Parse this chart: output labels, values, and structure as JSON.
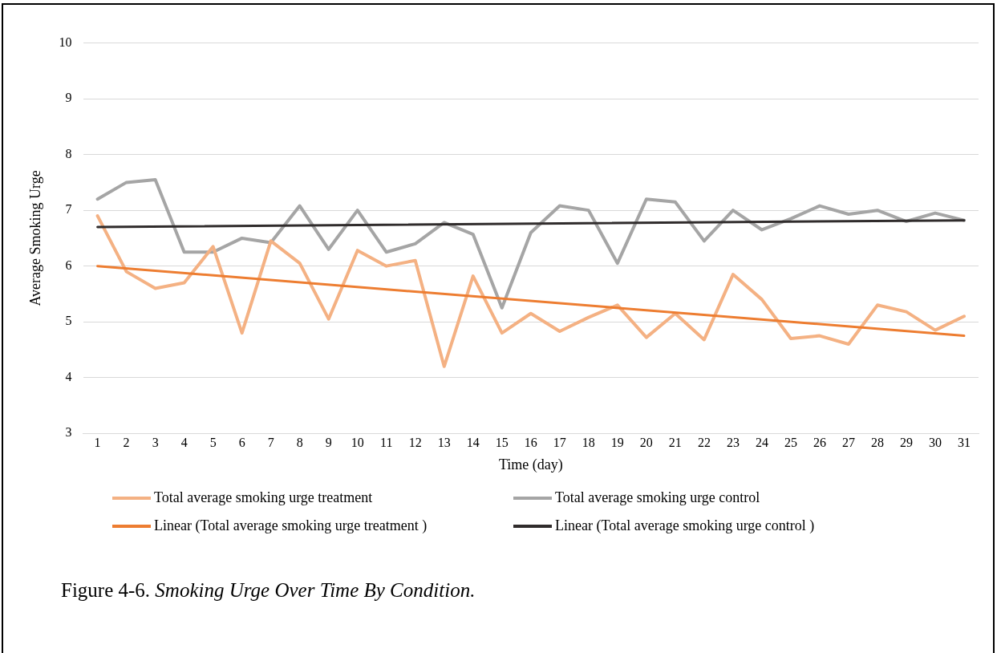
{
  "chart_data": {
    "type": "line",
    "xlabel": "Time (day)",
    "ylabel": "Average Smoking Urge",
    "xlim": [
      0.5,
      31.5
    ],
    "xticks": [
      1,
      2,
      3,
      4,
      5,
      6,
      7,
      8,
      9,
      10,
      11,
      12,
      13,
      14,
      15,
      16,
      17,
      18,
      19,
      20,
      21,
      22,
      23,
      24,
      25,
      26,
      27,
      28,
      29,
      30,
      31
    ],
    "ylim": [
      3,
      10
    ],
    "yticks": [
      3,
      4,
      5,
      6,
      7,
      8,
      9,
      10
    ],
    "grid": "y",
    "legend": "bottom",
    "marker": "none",
    "line_style": "solid",
    "series": [
      {
        "name": "Total average smoking urge treatment",
        "color": "#f4b183",
        "x": [
          1,
          2,
          3,
          4,
          5,
          6,
          7,
          8,
          9,
          10,
          11,
          12,
          13,
          14,
          15,
          16,
          17,
          18,
          19,
          20,
          21,
          22,
          23,
          24,
          25,
          26,
          27,
          28,
          29,
          30,
          31
        ],
        "values": [
          6.9,
          5.9,
          5.6,
          5.7,
          6.35,
          4.8,
          6.45,
          6.05,
          5.05,
          6.28,
          6.0,
          6.1,
          4.2,
          5.82,
          4.8,
          5.15,
          4.83,
          5.08,
          5.3,
          4.72,
          5.15,
          4.68,
          5.85,
          5.4,
          4.7,
          4.75,
          4.6,
          5.3,
          5.18,
          4.85,
          5.1
        ]
      },
      {
        "name": "Total average smoking urge control",
        "color": "#a5a5a5",
        "x": [
          1,
          2,
          3,
          4,
          5,
          6,
          7,
          8,
          9,
          10,
          11,
          12,
          13,
          14,
          15,
          16,
          17,
          18,
          19,
          20,
          21,
          22,
          23,
          24,
          25,
          26,
          27,
          28,
          29,
          30,
          31
        ],
        "values": [
          7.2,
          7.5,
          7.55,
          6.25,
          6.25,
          6.5,
          6.42,
          7.08,
          6.3,
          7.0,
          6.25,
          6.4,
          6.78,
          6.57,
          5.25,
          6.6,
          7.08,
          7.0,
          6.05,
          7.2,
          7.15,
          6.45,
          7.0,
          6.65,
          6.85,
          7.08,
          6.93,
          7.0,
          6.8,
          6.95,
          6.82
        ]
      },
      {
        "name": "Linear (Total average smoking urge treatment )",
        "type": "line",
        "color": "#ed7d31",
        "x": [
          1,
          31
        ],
        "values": [
          6.0,
          4.75
        ]
      },
      {
        "name": "Linear (Total average smoking urge control )",
        "type": "line",
        "color": "#302c2c",
        "x": [
          1,
          31
        ],
        "values": [
          6.7,
          6.82
        ]
      }
    ],
    "annotations": [
      "Figure 4-6. Smoking Urge Over Time By Condition."
    ]
  }
}
